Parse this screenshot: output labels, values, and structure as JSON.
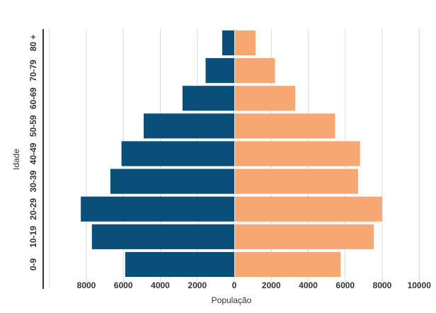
{
  "chart_data": {
    "type": "bar",
    "orientation": "horizontal",
    "style": "population-pyramid",
    "xlabel": "População",
    "ylabel": "Idade",
    "categories": [
      "0-9",
      "10-19",
      "20-29",
      "30-39",
      "40-49",
      "50-59",
      "60-69",
      "70-79",
      "80 +"
    ],
    "x_ticks": [
      {
        "value": -8000,
        "label": "8000"
      },
      {
        "value": -6000,
        "label": "6000"
      },
      {
        "value": -4000,
        "label": "4000"
      },
      {
        "value": -2000,
        "label": "2000"
      },
      {
        "value": 0,
        "label": "0"
      },
      {
        "value": 2000,
        "label": "2000"
      },
      {
        "value": 4000,
        "label": "4000"
      },
      {
        "value": 6000,
        "label": "6000"
      },
      {
        "value": 8000,
        "label": "8000"
      },
      {
        "value": 10000,
        "label": "10000"
      }
    ],
    "xlim": [
      -10000,
      10000
    ],
    "grid": true,
    "legend": "none",
    "series": [
      {
        "side": "left",
        "color": "#0a4f7a",
        "values": [
          5900,
          7700,
          8300,
          6700,
          6100,
          4900,
          2800,
          1550,
          650
        ]
      },
      {
        "side": "right",
        "color": "#f7a872",
        "values": [
          5750,
          7550,
          8000,
          6700,
          6800,
          5450,
          3300,
          2200,
          1150
        ]
      }
    ]
  }
}
